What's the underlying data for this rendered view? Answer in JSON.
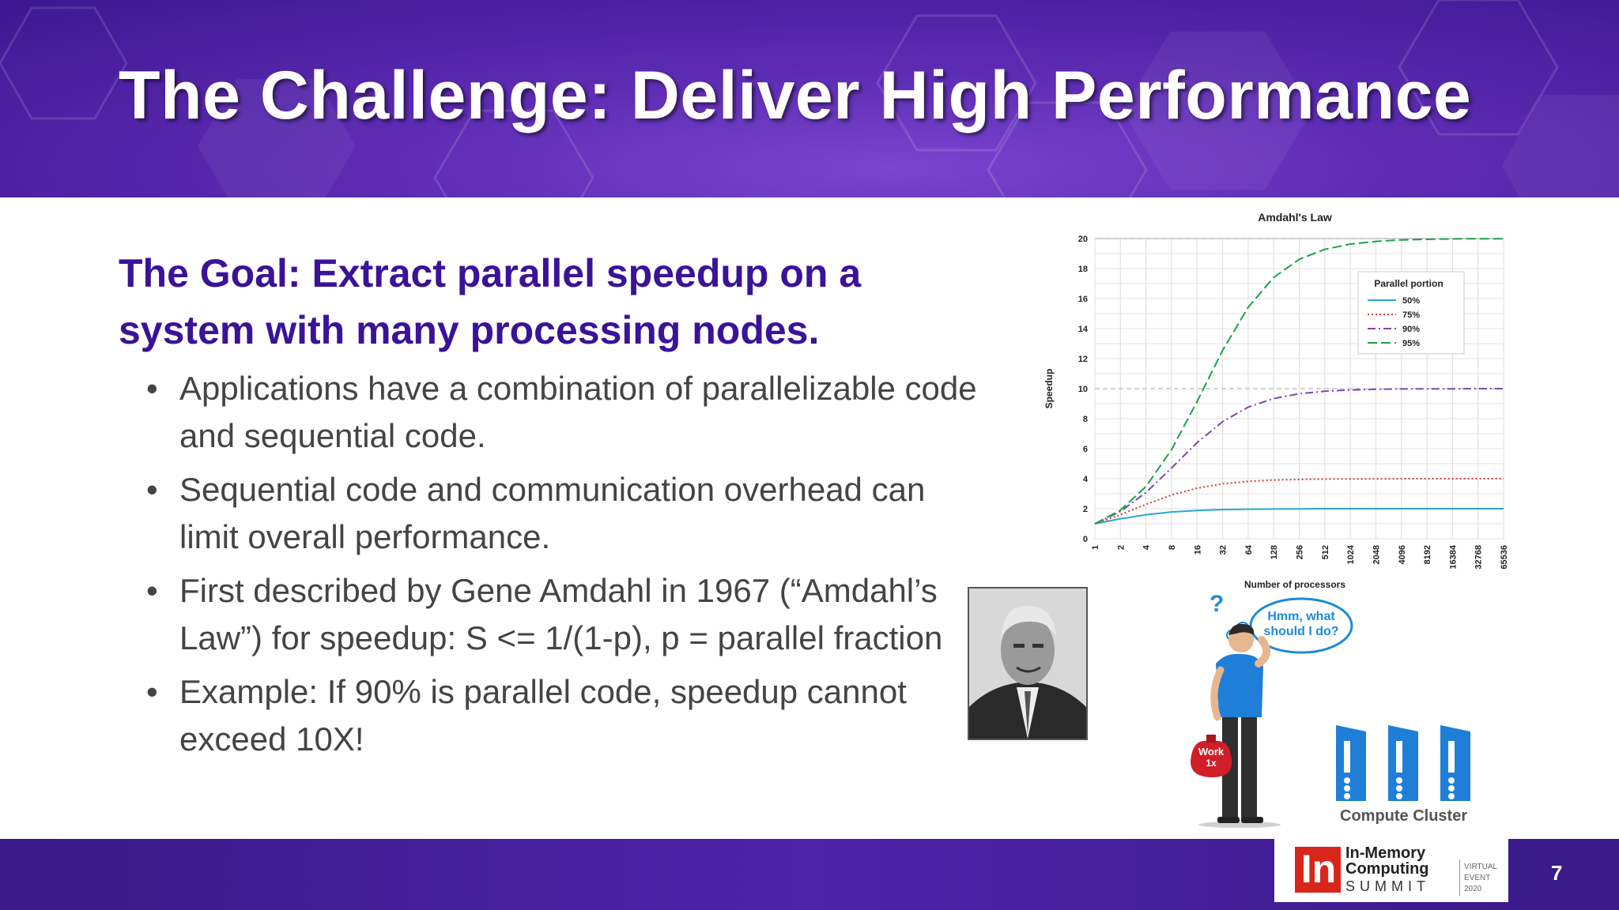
{
  "slide": {
    "title": "The Challenge: Deliver High Performance",
    "goal": "The Goal: Extract parallel speedup on a system with many processing nodes.",
    "bullets": [
      "Applications have a combination of parallelizable code and sequential code.",
      "Sequential code and communication overhead can limit overall performance.",
      "First described by Gene Amdahl in 1967 (“Amdahl’s Law”) for speedup: S <= 1/(1-p), p = parallel fraction",
      "Example: If 90% is parallel code, speedup cannot exceed 10X!"
    ],
    "page_number": "7"
  },
  "illustration": {
    "question_mark": "?",
    "thought": [
      "Hmm, what",
      "should I do?"
    ],
    "bag": [
      "Work",
      "1x"
    ],
    "cluster_label": "Compute Cluster"
  },
  "logo": {
    "mark": "In",
    "line1": "In-Memory",
    "line2": "Computing",
    "line3": "SUMMIT",
    "side1": "VIRTUAL",
    "side2": "EVENT",
    "side3": "2020"
  },
  "colors": {
    "header_purple": "#4a1fa3",
    "goal_text": "#3a1398",
    "s50": "#2aa6cf",
    "s75": "#d23b3b",
    "s90": "#7a4aa8",
    "s95": "#1aa34a"
  },
  "chart_data": {
    "type": "line",
    "title": "Amdahl's Law",
    "xlabel": "Number of processors",
    "ylabel": "Speedup",
    "x": [
      "1",
      "2",
      "4",
      "8",
      "16",
      "32",
      "64",
      "128",
      "256",
      "512",
      "1024",
      "2048",
      "4096",
      "8192",
      "16384",
      "32768",
      "65536"
    ],
    "ylim": [
      0,
      20
    ],
    "yticks": [
      "0",
      "2",
      "4",
      "6",
      "8",
      "10",
      "12",
      "14",
      "16",
      "18",
      "20"
    ],
    "legend_title": "Parallel portion",
    "legend_position": "top-right",
    "grid": true,
    "series": [
      {
        "name": "50%",
        "style": "solid",
        "color": "#2aa6cf",
        "values": [
          1.0,
          1.33,
          1.6,
          1.78,
          1.88,
          1.94,
          1.97,
          1.98,
          1.99,
          2.0,
          2.0,
          2.0,
          2.0,
          2.0,
          2.0,
          2.0,
          2.0
        ]
      },
      {
        "name": "75%",
        "style": "dotted",
        "color": "#d23b3b",
        "values": [
          1.0,
          1.6,
          2.29,
          2.91,
          3.37,
          3.66,
          3.82,
          3.91,
          3.95,
          3.98,
          3.99,
          3.99,
          4.0,
          4.0,
          4.0,
          4.0,
          4.0
        ]
      },
      {
        "name": "90%",
        "style": "dashdot",
        "color": "#7a4aa8",
        "values": [
          1.0,
          1.82,
          3.08,
          4.71,
          6.4,
          7.8,
          8.77,
          9.34,
          9.66,
          9.83,
          9.91,
          9.96,
          9.98,
          9.99,
          9.99,
          10.0,
          10.0
        ]
      },
      {
        "name": "95%",
        "style": "dashed",
        "color": "#1aa34a",
        "values": [
          1.0,
          1.9,
          3.48,
          5.93,
          9.14,
          12.55,
          15.42,
          17.41,
          18.62,
          19.28,
          19.63,
          19.81,
          19.91,
          19.95,
          19.98,
          19.99,
          19.99
        ]
      }
    ]
  }
}
